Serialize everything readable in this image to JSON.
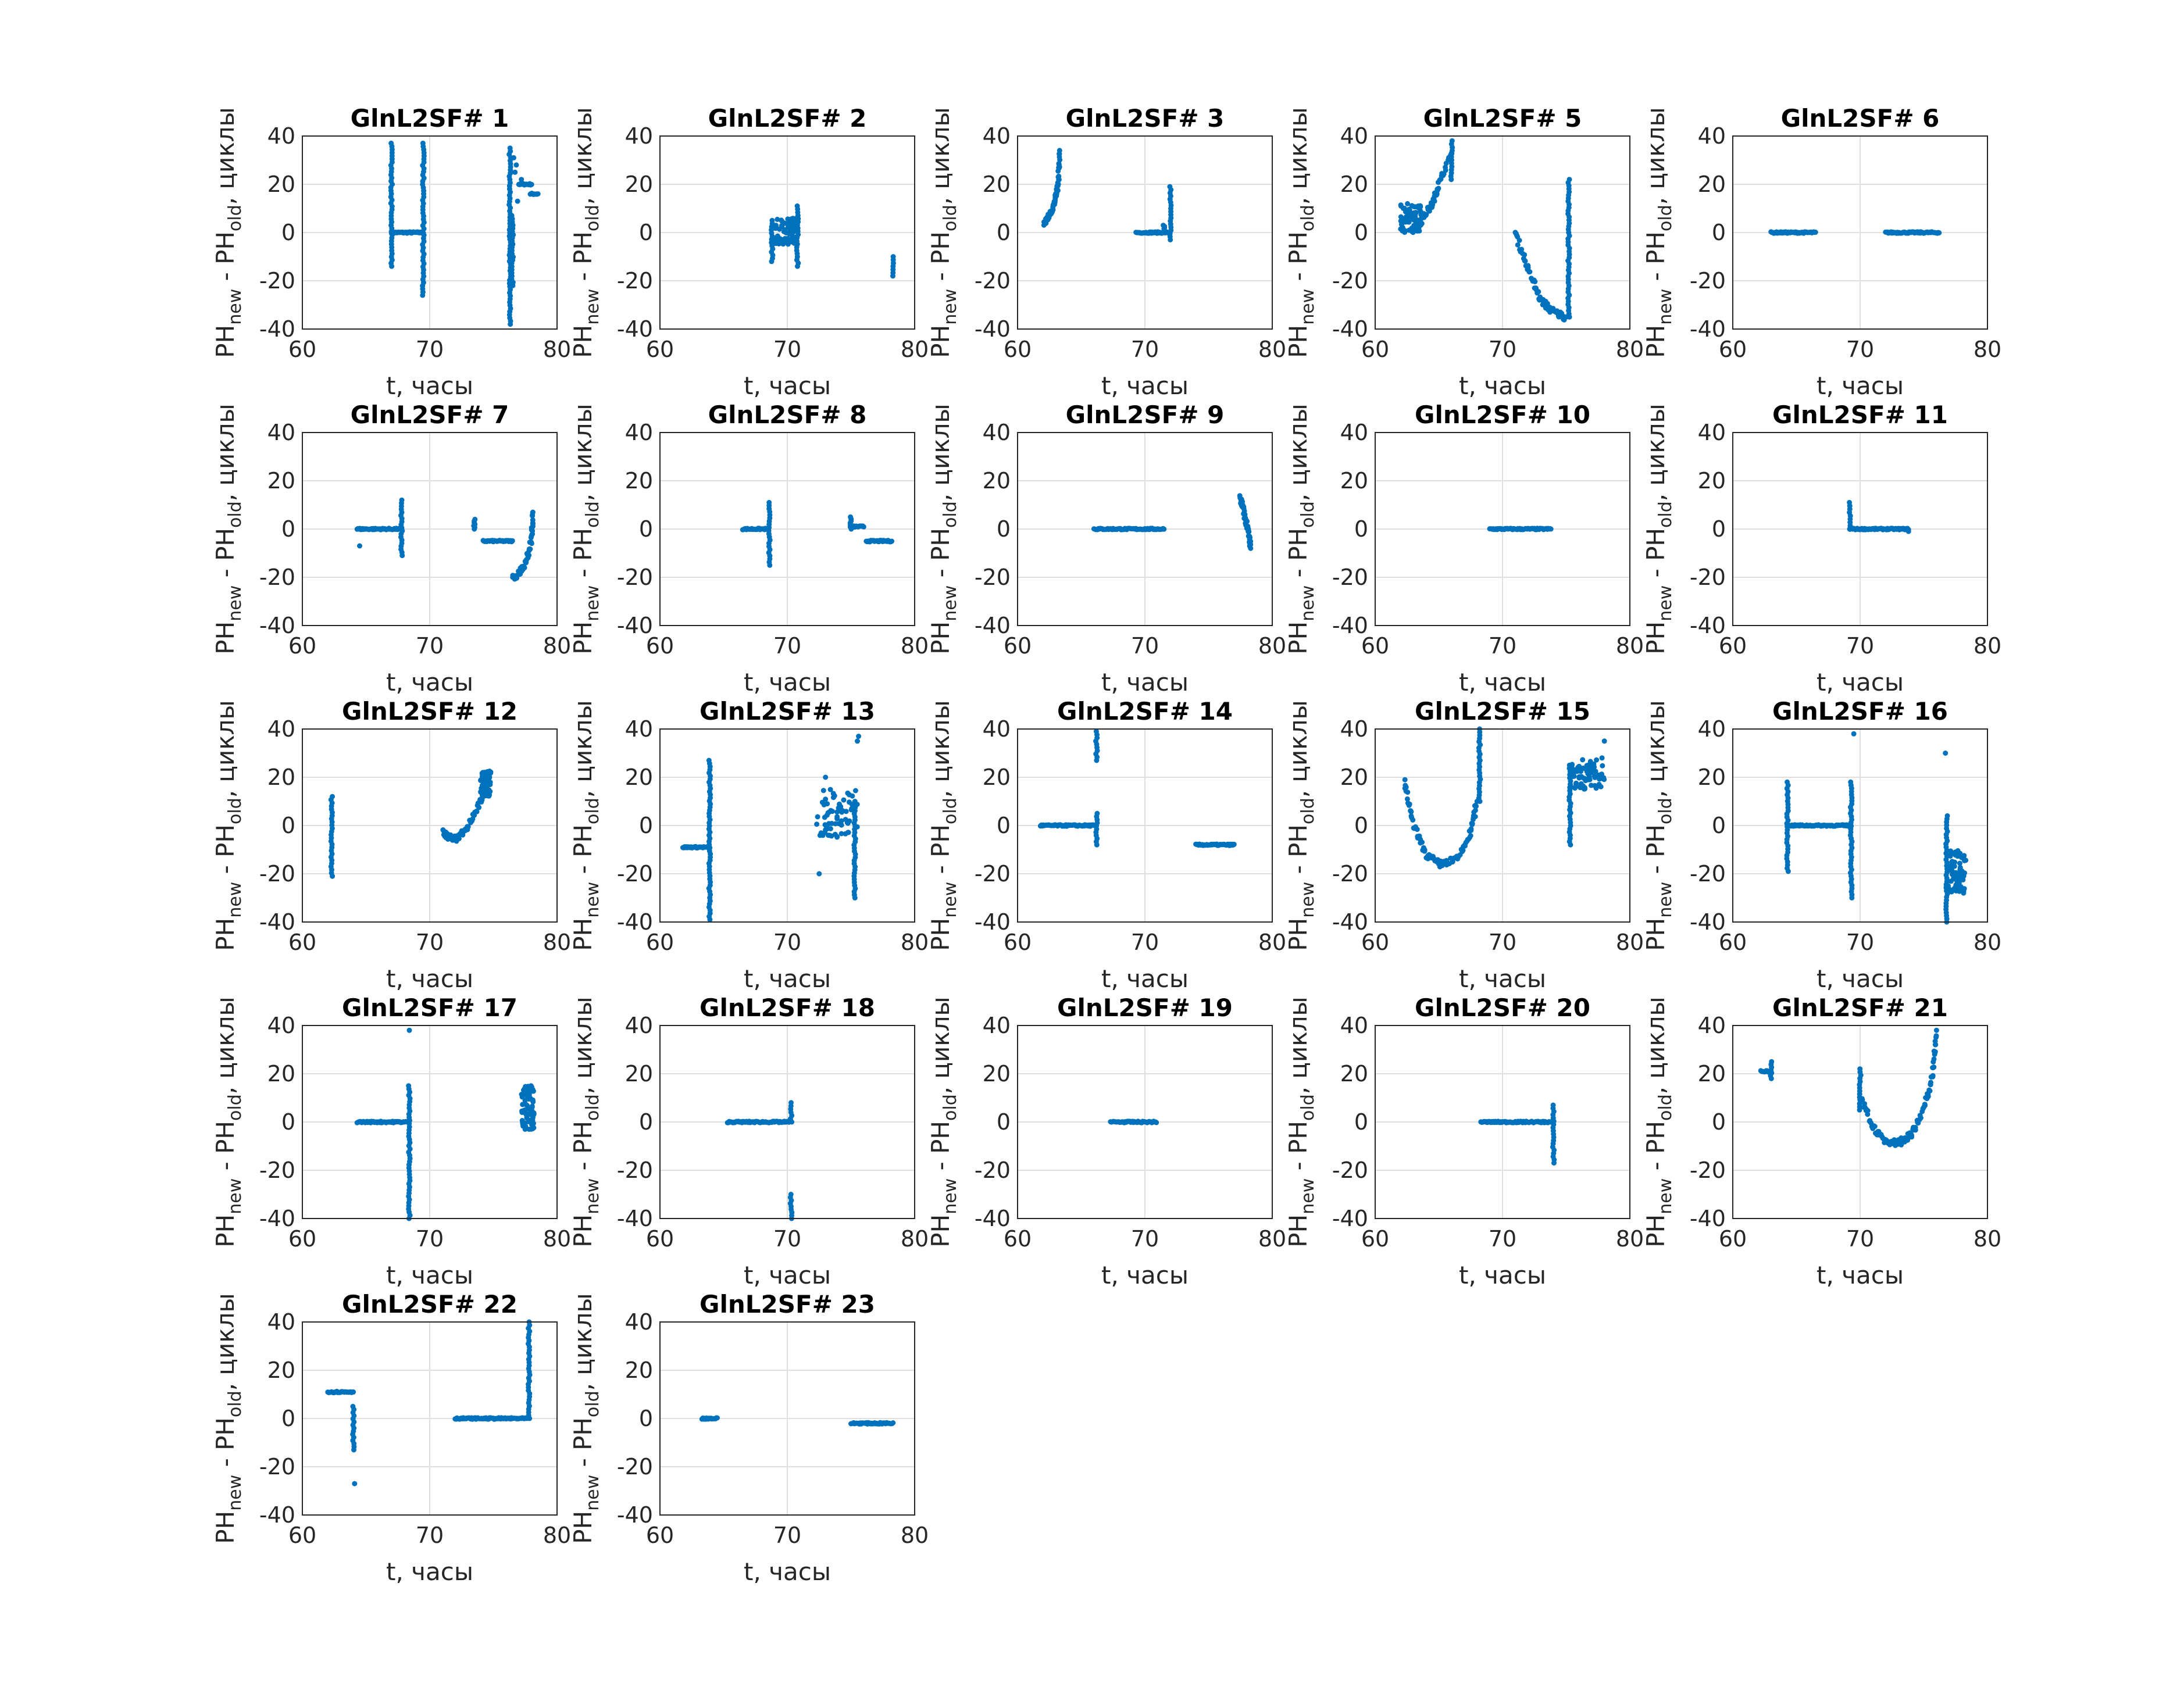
{
  "chart_data": {
    "type": "scatter",
    "layout": "5x5 grid of subplots",
    "marker_color": "#0072BD",
    "grid": true,
    "xlim": [
      60,
      80
    ],
    "ylim": [
      -40,
      40
    ],
    "xticks": [
      60,
      70,
      80
    ],
    "yticks": [
      -40,
      -20,
      0,
      20,
      40
    ],
    "xlabel": "t, часы",
    "ylabel": {
      "p1": "PH",
      "s1": "new",
      "p2": " - PH",
      "s2": "old",
      "p3": ", циклы"
    },
    "note_on_features": "hlines [t1,t2,y]; vlines [t,ymin,ymax]; curves polyline [[t,y]...]; clusters [t1,t2,ymin,ymax]; points [t,y]",
    "subplots": [
      {
        "title": "GlnL2SF# 1",
        "hlines": [
          [
            67,
            69.5,
            0
          ],
          [
            77,
            78,
            20
          ],
          [
            77.9,
            78.5,
            16
          ]
        ],
        "vlines": [
          [
            67,
            -14,
            37
          ],
          [
            69.5,
            -26,
            37
          ],
          [
            76.3,
            -38,
            35
          ],
          [
            76.5,
            -22,
            7
          ]
        ],
        "points": [
          [
            76.7,
            25
          ],
          [
            76.8,
            28
          ],
          [
            76.9,
            13
          ],
          [
            77.2,
            22
          ],
          [
            76.6,
            31
          ]
        ]
      },
      {
        "title": "GlnL2SF# 2",
        "vlines": [
          [
            68.8,
            -12,
            5
          ],
          [
            70.8,
            -14,
            11
          ],
          [
            78.3,
            -18,
            -10
          ]
        ],
        "clusters": [
          [
            69,
            70.7,
            -5,
            6
          ]
        ]
      },
      {
        "title": "GlnL2SF# 3",
        "hlines": [
          [
            69.3,
            71.8,
            0
          ]
        ],
        "vlines": [
          [
            72,
            -3,
            19
          ],
          [
            71.5,
            0,
            3
          ]
        ],
        "curves": [
          [
            [
              62.1,
              4
            ],
            [
              62.5,
              7
            ],
            [
              62.9,
              12
            ],
            [
              63.2,
              20
            ],
            [
              63.3,
              34
            ]
          ]
        ]
      },
      {
        "title": "GlnL2SF# 5",
        "vlines": [
          [
            66,
            22,
            38
          ],
          [
            75.2,
            -35,
            22
          ]
        ],
        "clusters": [
          [
            62,
            63.6,
            0,
            12
          ]
        ],
        "curves": [
          [
            [
              63.5,
              4
            ],
            [
              64.5,
              12
            ],
            [
              65,
              20
            ],
            [
              66,
              33
            ]
          ],
          [
            [
              71,
              0
            ],
            [
              72,
              -15
            ],
            [
              73,
              -28
            ],
            [
              74,
              -33
            ],
            [
              75,
              -35
            ]
          ]
        ]
      },
      {
        "title": "GlnL2SF# 6",
        "hlines": [
          [
            63,
            66.5,
            0
          ],
          [
            72,
            76.2,
            0
          ]
        ]
      },
      {
        "title": "GlnL2SF# 7",
        "hlines": [
          [
            64.3,
            67.8,
            0
          ],
          [
            74.2,
            76.5,
            -5
          ]
        ],
        "vlines": [
          [
            67.8,
            -11,
            12
          ],
          [
            73.5,
            0,
            4
          ]
        ],
        "points": [
          [
            64.5,
            -7
          ]
        ],
        "curves": [
          [
            [
              76.5,
              -21
            ],
            [
              77.5,
              -15
            ],
            [
              78,
              -5
            ],
            [
              78.1,
              7
            ]
          ]
        ]
      },
      {
        "title": "GlnL2SF# 8",
        "hlines": [
          [
            66.5,
            68.5,
            0
          ],
          [
            75.2,
            76,
            1
          ],
          [
            76.2,
            78.2,
            -5
          ]
        ],
        "vlines": [
          [
            68.6,
            -15,
            11
          ],
          [
            75,
            0,
            5
          ]
        ]
      },
      {
        "title": "GlnL2SF# 9",
        "hlines": [
          [
            66,
            71.5,
            0
          ]
        ],
        "curves": [
          [
            [
              77.5,
              13
            ],
            [
              77.8,
              6
            ],
            [
              78.1,
              0
            ],
            [
              78.3,
              -8
            ]
          ]
        ]
      },
      {
        "title": "GlnL2SF# 10",
        "hlines": [
          [
            69,
            73.8,
            0
          ]
        ]
      },
      {
        "title": "GlnL2SF# 11",
        "hlines": [
          [
            69.2,
            73.8,
            0
          ]
        ],
        "vlines": [
          [
            69.2,
            0,
            11
          ]
        ],
        "points": [
          [
            73.8,
            -1
          ]
        ]
      },
      {
        "title": "GlnL2SF# 12",
        "vlines": [
          [
            62.3,
            -21,
            12
          ]
        ],
        "curves": [
          [
            [
              71,
              -3
            ],
            [
              72,
              -6
            ],
            [
              73,
              0
            ],
            [
              74,
              10
            ],
            [
              74.7,
              20
            ]
          ]
        ],
        "clusters": [
          [
            74,
            74.8,
            12,
            23
          ]
        ]
      },
      {
        "title": "GlnL2SF# 13",
        "hlines": [
          [
            61.8,
            63.8,
            -9
          ]
        ],
        "vlines": [
          [
            63.9,
            -39,
            27
          ],
          [
            75.3,
            -30,
            10
          ]
        ],
        "clusters": [
          [
            72.3,
            75.5,
            -5,
            15
          ]
        ],
        "points": [
          [
            75.5,
            35
          ],
          [
            75.6,
            37
          ],
          [
            72.5,
            -20
          ],
          [
            73,
            20
          ]
        ]
      },
      {
        "title": "GlnL2SF# 14",
        "hlines": [
          [
            61.8,
            66,
            0
          ],
          [
            74,
            77,
            -8
          ]
        ],
        "vlines": [
          [
            66.2,
            -8,
            5
          ],
          [
            66.2,
            27,
            39
          ]
        ]
      },
      {
        "title": "GlnL2SF# 15",
        "vlines": [
          [
            75.3,
            -8,
            25
          ],
          [
            68.2,
            10,
            40
          ]
        ],
        "clusters": [
          [
            75.3,
            78,
            15,
            28
          ]
        ],
        "curves": [
          [
            [
              62.3,
              18
            ],
            [
              63,
              0
            ],
            [
              64,
              -12
            ],
            [
              65,
              -16
            ],
            [
              66.5,
              -14
            ],
            [
              67.5,
              -3
            ],
            [
              68,
              10
            ]
          ]
        ],
        "points": [
          [
            78,
            35
          ]
        ]
      },
      {
        "title": "GlnL2SF# 16",
        "hlines": [
          [
            64.3,
            69.3,
            0
          ]
        ],
        "vlines": [
          [
            64.3,
            -19,
            18
          ],
          [
            69.3,
            -30,
            18
          ],
          [
            76.8,
            -40,
            4
          ]
        ],
        "clusters": [
          [
            76.8,
            78.3,
            -28,
            -10
          ]
        ],
        "points": [
          [
            69.5,
            38
          ],
          [
            76.7,
            30
          ]
        ]
      },
      {
        "title": "GlnL2SF# 17",
        "hlines": [
          [
            64.3,
            68.3,
            0
          ]
        ],
        "vlines": [
          [
            68.4,
            -40,
            15
          ]
        ],
        "clusters": [
          [
            77.2,
            78.2,
            -3,
            15
          ]
        ],
        "points": [
          [
            68.4,
            38
          ]
        ]
      },
      {
        "title": "GlnL2SF# 18",
        "hlines": [
          [
            65.3,
            70.2,
            0
          ]
        ],
        "vlines": [
          [
            70.3,
            0,
            8
          ],
          [
            70.3,
            -40,
            -30
          ]
        ]
      },
      {
        "title": "GlnL2SF# 19",
        "hlines": [
          [
            67.3,
            70.9,
            0
          ]
        ]
      },
      {
        "title": "GlnL2SF# 20",
        "hlines": [
          [
            68.3,
            74,
            0
          ]
        ],
        "vlines": [
          [
            74,
            -17,
            7
          ]
        ]
      },
      {
        "title": "GlnL2SF# 21",
        "hlines": [
          [
            62.2,
            63,
            21
          ]
        ],
        "vlines": [
          [
            63,
            18,
            25
          ],
          [
            70,
            5,
            22
          ]
        ],
        "curves": [
          [
            [
              70,
              10
            ],
            [
              71,
              -2
            ],
            [
              72,
              -8
            ],
            [
              73,
              -9
            ],
            [
              74,
              -5
            ],
            [
              75,
              5
            ],
            [
              75.7,
              20
            ],
            [
              76,
              38
            ]
          ]
        ]
      },
      {
        "title": "GlnL2SF# 22",
        "hlines": [
          [
            62,
            64,
            11
          ],
          [
            72,
            77.7,
            0
          ]
        ],
        "vlines": [
          [
            64,
            -13,
            5
          ],
          [
            77.8,
            0,
            40
          ]
        ],
        "points": [
          [
            64.1,
            -27
          ]
        ]
      },
      {
        "title": "GlnL2SF# 23",
        "hlines": [
          [
            63.3,
            64.5,
            0
          ],
          [
            75,
            78.3,
            -2
          ]
        ]
      }
    ]
  }
}
